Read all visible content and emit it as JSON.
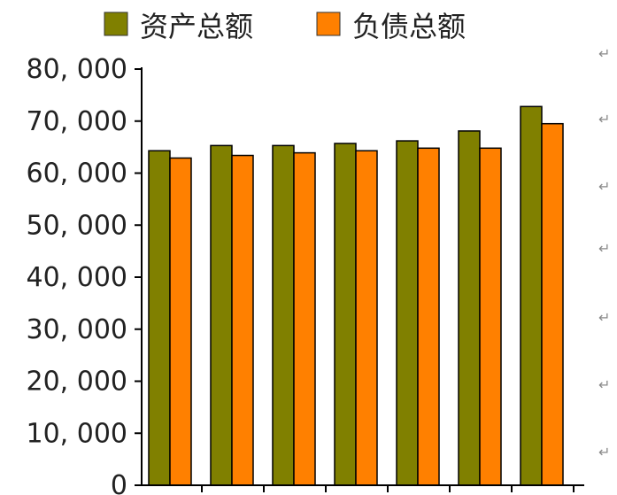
{
  "chart_data": {
    "type": "bar",
    "title": "",
    "xlabel": "",
    "ylabel": "",
    "categories": [
      "",
      "",
      "",
      "",
      "",
      "",
      ""
    ],
    "ylim": [
      0,
      80000
    ],
    "yticks": [
      0,
      10000,
      20000,
      30000,
      40000,
      50000,
      60000,
      70000,
      80000
    ],
    "ytick_labels": [
      "0",
      "10, 000",
      "20, 000",
      "30, 000",
      "40, 000",
      "50, 000",
      "60, 000",
      "70, 000",
      "80, 000"
    ],
    "grid": false,
    "legend_position": "top",
    "series": [
      {
        "name": "资产总额",
        "color": "#808000",
        "values": [
          64300,
          65300,
          65300,
          65700,
          66200,
          68100,
          72800
        ]
      },
      {
        "name": "负债总额",
        "color": "#ff8000",
        "values": [
          62900,
          63400,
          63900,
          64300,
          64800,
          64800,
          69500
        ]
      }
    ]
  },
  "side_marks": [
    "↵",
    "↵",
    "↵",
    "↵",
    "↵",
    "↵",
    "↵"
  ]
}
